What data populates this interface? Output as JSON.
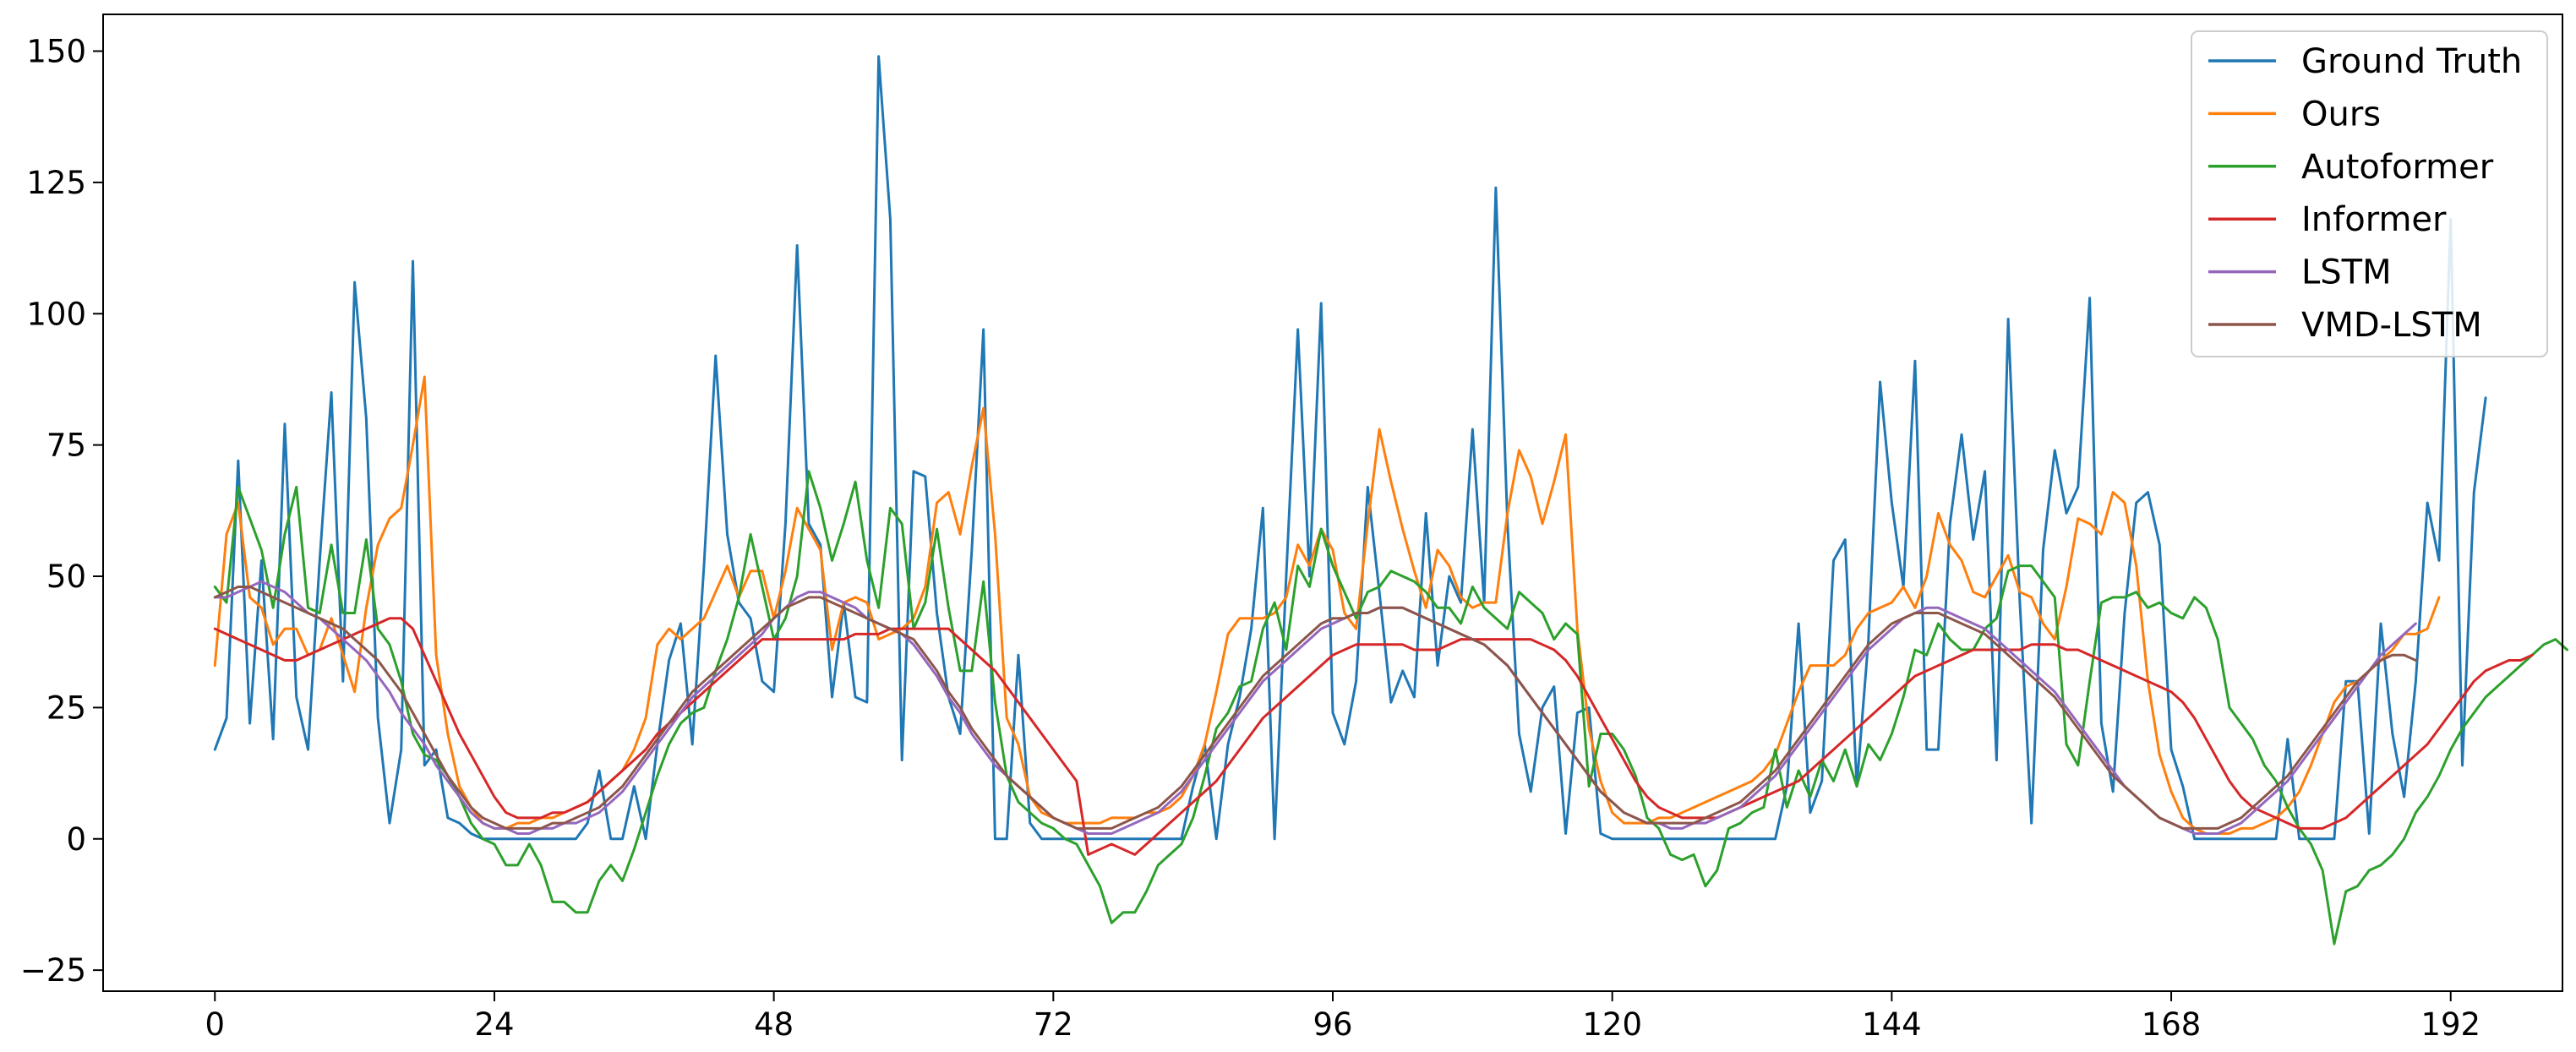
{
  "chart_data": {
    "type": "line",
    "title": "",
    "xlabel": "",
    "ylabel": "",
    "xlim": [
      -9.6,
      201.6
    ],
    "ylim": [
      -29,
      157
    ],
    "xticks": [
      0,
      24,
      48,
      72,
      96,
      120,
      144,
      168,
      192
    ],
    "yticks": [
      -25,
      0,
      25,
      50,
      75,
      100,
      125,
      150
    ],
    "grid": false,
    "legend_position": "top-right",
    "series": [
      {
        "name": "Ground Truth",
        "color": "#1f77b4",
        "values": [
          17,
          23,
          72,
          22,
          53,
          19,
          79,
          27,
          17,
          53,
          85,
          30,
          106,
          80,
          23,
          3,
          17,
          110,
          14,
          17,
          4,
          3,
          1,
          0,
          0,
          0,
          0,
          0,
          0,
          0,
          0,
          0,
          3,
          13,
          0,
          0,
          10,
          0,
          18,
          34,
          41,
          18,
          52,
          92,
          58,
          45,
          42,
          30,
          28,
          60,
          113,
          60,
          56,
          27,
          45,
          27,
          26,
          149,
          118,
          15,
          70,
          69,
          43,
          27,
          20,
          55,
          97,
          0,
          0,
          35,
          3,
          0,
          0,
          0,
          0,
          0,
          0,
          0,
          0,
          0,
          0,
          0,
          0,
          0,
          10,
          18,
          0,
          18,
          27,
          40,
          63,
          0,
          50,
          97,
          50,
          102,
          24,
          18,
          30,
          67,
          47,
          26,
          32,
          27,
          62,
          33,
          50,
          45,
          78,
          45,
          124,
          60,
          20,
          9,
          25,
          29,
          1,
          24,
          25,
          1,
          0,
          0,
          0,
          0,
          0,
          0,
          0,
          0,
          0,
          0,
          0,
          0,
          0,
          0,
          0,
          10,
          41,
          5,
          11,
          53,
          57,
          10,
          38,
          87,
          64,
          48,
          91,
          17,
          17,
          60,
          77,
          57,
          70,
          15,
          99,
          45,
          3,
          55,
          74,
          62,
          67,
          103,
          22,
          9,
          43,
          64,
          66,
          56,
          17,
          10,
          0,
          0,
          0,
          0,
          0,
          0,
          0,
          0,
          19,
          0,
          0,
          0,
          0,
          30,
          30,
          1,
          41,
          20,
          8,
          30,
          64,
          53,
          118,
          14,
          66,
          84
        ]
      },
      {
        "name": "Ours",
        "color": "#ff7f0e",
        "values": [
          33,
          58,
          64,
          46,
          44,
          37,
          40,
          40,
          35,
          36,
          42,
          35,
          28,
          44,
          56,
          61,
          63,
          75,
          88,
          35,
          20,
          10,
          6,
          3,
          2,
          2,
          3,
          3,
          4,
          4,
          5,
          6,
          7,
          9,
          11,
          13,
          17,
          23,
          37,
          40,
          38,
          40,
          42,
          47,
          52,
          46,
          51,
          51,
          42,
          51,
          63,
          59,
          55,
          36,
          45,
          46,
          45,
          38,
          39,
          40,
          42,
          48,
          64,
          66,
          58,
          71,
          82,
          58,
          23,
          18,
          8,
          5,
          4,
          3,
          3,
          3,
          3,
          4,
          4,
          4,
          5,
          5,
          6,
          8,
          12,
          18,
          28,
          39,
          42,
          42,
          42,
          43,
          46,
          56,
          52,
          59,
          55,
          43,
          40,
          60,
          78,
          68,
          59,
          51,
          44,
          55,
          52,
          46,
          44,
          45,
          45,
          62,
          74,
          69,
          60,
          68,
          77,
          40,
          21,
          11,
          5,
          3,
          3,
          3,
          4,
          4,
          5,
          6,
          7,
          8,
          9,
          10,
          11,
          13,
          16,
          22,
          28,
          33,
          33,
          33,
          35,
          40,
          43,
          44,
          45,
          48,
          44,
          50,
          62,
          56,
          53,
          47,
          46,
          50,
          54,
          47,
          46,
          41,
          38,
          48,
          61,
          60,
          58,
          66,
          64,
          52,
          30,
          16,
          9,
          4,
          2,
          1,
          1,
          1,
          2,
          2,
          3,
          4,
          6,
          9,
          14,
          20,
          26,
          29,
          30,
          32,
          34,
          36,
          39,
          39,
          40,
          46
        ]
      },
      {
        "name": "Autoformer",
        "color": "#2ca02c",
        "values": [
          48,
          45,
          67,
          61,
          55,
          44,
          58,
          67,
          44,
          43,
          56,
          43,
          43,
          57,
          40,
          37,
          30,
          20,
          16,
          15,
          12,
          8,
          3,
          0,
          -1,
          -5,
          -5,
          -1,
          -5,
          -12,
          -12,
          -14,
          -14,
          -8,
          -5,
          -8,
          -2,
          5,
          12,
          18,
          22,
          24,
          25,
          32,
          38,
          46,
          58,
          48,
          38,
          42,
          50,
          70,
          63,
          53,
          60,
          68,
          53,
          44,
          63,
          60,
          40,
          45,
          59,
          44,
          32,
          32,
          49,
          26,
          12,
          7,
          5,
          3,
          2,
          0,
          -1,
          -5,
          -9,
          -16,
          -14,
          -14,
          -10,
          -5,
          -3,
          -1,
          4,
          12,
          21,
          24,
          29,
          30,
          40,
          45,
          36,
          52,
          48,
          59,
          52,
          47,
          42,
          47,
          48,
          51,
          50,
          49,
          47,
          44,
          44,
          41,
          48,
          44,
          42,
          40,
          47,
          45,
          43,
          38,
          41,
          39,
          10,
          20,
          20,
          17,
          12,
          4,
          2,
          -3,
          -4,
          -3,
          -9,
          -6,
          2,
          3,
          5,
          6,
          17,
          6,
          13,
          8,
          15,
          11,
          17,
          10,
          18,
          15,
          20,
          27,
          36,
          35,
          41,
          38,
          36,
          36,
          40,
          42,
          51,
          52,
          52,
          49,
          46,
          18,
          14,
          30,
          45,
          46,
          46,
          47,
          44,
          45,
          43,
          42,
          46,
          44,
          38,
          25,
          22,
          19,
          14,
          11,
          6,
          2,
          -1,
          -6,
          -20,
          -10,
          -9,
          -6,
          -5,
          -3,
          0,
          5,
          8,
          12,
          17,
          21,
          24,
          27,
          29,
          31,
          33,
          35,
          37,
          38,
          36
        ]
      },
      {
        "name": "Informer",
        "color": "#d62728",
        "values": [
          40,
          39,
          38,
          37,
          36,
          35,
          34,
          34,
          35,
          36,
          37,
          38,
          39,
          40,
          41,
          42,
          42,
          40,
          35,
          30,
          25,
          20,
          16,
          12,
          8,
          5,
          4,
          4,
          4,
          5,
          5,
          6,
          7,
          9,
          11,
          13,
          15,
          17,
          20,
          22,
          24,
          26,
          28,
          30,
          32,
          34,
          36,
          38,
          38,
          38,
          38,
          38,
          38,
          38,
          38,
          39,
          39,
          39,
          40,
          40,
          40,
          40,
          40,
          40,
          38,
          36,
          34,
          32,
          29,
          26,
          23,
          20,
          17,
          14,
          11,
          -3,
          -2,
          -1,
          -2,
          -3,
          -1,
          1,
          3,
          5,
          7,
          9,
          11,
          14,
          17,
          20,
          23,
          25,
          27,
          29,
          31,
          33,
          35,
          36,
          37,
          37,
          37,
          37,
          37,
          36,
          36,
          36,
          37,
          38,
          38,
          38,
          38,
          38,
          38,
          38,
          37,
          36,
          34,
          31,
          27,
          23,
          19,
          15,
          11,
          8,
          6,
          5,
          4,
          4,
          4,
          4,
          5,
          6,
          7,
          8,
          9,
          10,
          11,
          13,
          15,
          17,
          19,
          21,
          23,
          25,
          27,
          29,
          31,
          32,
          33,
          34,
          35,
          36,
          36,
          36,
          36,
          36,
          37,
          37,
          37,
          36,
          36,
          35,
          34,
          33,
          32,
          31,
          30,
          29,
          28,
          26,
          23,
          19,
          15,
          11,
          8,
          6,
          5,
          4,
          3,
          2,
          2,
          2,
          3,
          4,
          6,
          8,
          10,
          12,
          14,
          16,
          18,
          21,
          24,
          27,
          30,
          32,
          33,
          34,
          34,
          35
        ]
      },
      {
        "name": "LSTM",
        "color": "#9467bd",
        "values": [
          46,
          46,
          47,
          48,
          49,
          48,
          47,
          45,
          43,
          42,
          40,
          38,
          36,
          34,
          31,
          28,
          24,
          21,
          18,
          14,
          11,
          8,
          5,
          3,
          2,
          2,
          1,
          1,
          2,
          2,
          3,
          3,
          4,
          5,
          7,
          9,
          12,
          15,
          18,
          21,
          24,
          27,
          29,
          31,
          33,
          35,
          37,
          39,
          42,
          44,
          46,
          47,
          47,
          46,
          45,
          44,
          42,
          41,
          40,
          39,
          37,
          34,
          31,
          27,
          24,
          20,
          17,
          14,
          12,
          10,
          8,
          6,
          4,
          3,
          2,
          1,
          1,
          1,
          2,
          3,
          4,
          5,
          7,
          9,
          12,
          15,
          18,
          21,
          24,
          27,
          30,
          32,
          34,
          36,
          38,
          40,
          41,
          42,
          43,
          43,
          44,
          44,
          44,
          43,
          42,
          41,
          40,
          39,
          38,
          37,
          35,
          33,
          30,
          27,
          24,
          21,
          18,
          15,
          12,
          9,
          7,
          5,
          4,
          3,
          3,
          2,
          2,
          3,
          3,
          4,
          5,
          6,
          8,
          10,
          12,
          15,
          18,
          21,
          24,
          27,
          30,
          33,
          36,
          38,
          40,
          42,
          43,
          44,
          44,
          43,
          42,
          41,
          40,
          38,
          36,
          34,
          32,
          30,
          28,
          25,
          22,
          19,
          16,
          13,
          10,
          8,
          6,
          4,
          3,
          2,
          1,
          1,
          1,
          2,
          3,
          5,
          7,
          9,
          11,
          14,
          17,
          20,
          23,
          26,
          29,
          32,
          35,
          37,
          39,
          41
        ]
      },
      {
        "name": "VMD-LSTM",
        "color": "#8c564b",
        "values": [
          46,
          47,
          48,
          48,
          47,
          46,
          45,
          44,
          43,
          42,
          41,
          40,
          38,
          36,
          34,
          31,
          28,
          24,
          20,
          16,
          12,
          9,
          6,
          4,
          3,
          2,
          2,
          2,
          2,
          3,
          3,
          4,
          5,
          6,
          8,
          10,
          13,
          16,
          19,
          22,
          25,
          28,
          30,
          32,
          34,
          36,
          38,
          40,
          42,
          44,
          45,
          46,
          46,
          45,
          44,
          43,
          42,
          41,
          40,
          39,
          38,
          35,
          32,
          28,
          25,
          21,
          18,
          15,
          12,
          10,
          8,
          6,
          4,
          3,
          2,
          2,
          2,
          2,
          3,
          4,
          5,
          6,
          8,
          10,
          13,
          16,
          19,
          22,
          25,
          28,
          31,
          33,
          35,
          37,
          39,
          41,
          42,
          42,
          43,
          43,
          44,
          44,
          44,
          43,
          42,
          41,
          40,
          39,
          38,
          37,
          35,
          33,
          30,
          27,
          24,
          21,
          18,
          15,
          12,
          9,
          7,
          5,
          4,
          3,
          3,
          3,
          3,
          3,
          4,
          5,
          6,
          7,
          9,
          11,
          13,
          16,
          19,
          22,
          25,
          28,
          31,
          34,
          37,
          39,
          41,
          42,
          43,
          43,
          43,
          42,
          41,
          40,
          39,
          37,
          35,
          33,
          31,
          29,
          27,
          24,
          21,
          18,
          15,
          12,
          10,
          8,
          6,
          4,
          3,
          2,
          2,
          2,
          2,
          3,
          4,
          6,
          8,
          10,
          12,
          15,
          18,
          21,
          24,
          27,
          30,
          32,
          34,
          35,
          35,
          34
        ]
      }
    ]
  }
}
